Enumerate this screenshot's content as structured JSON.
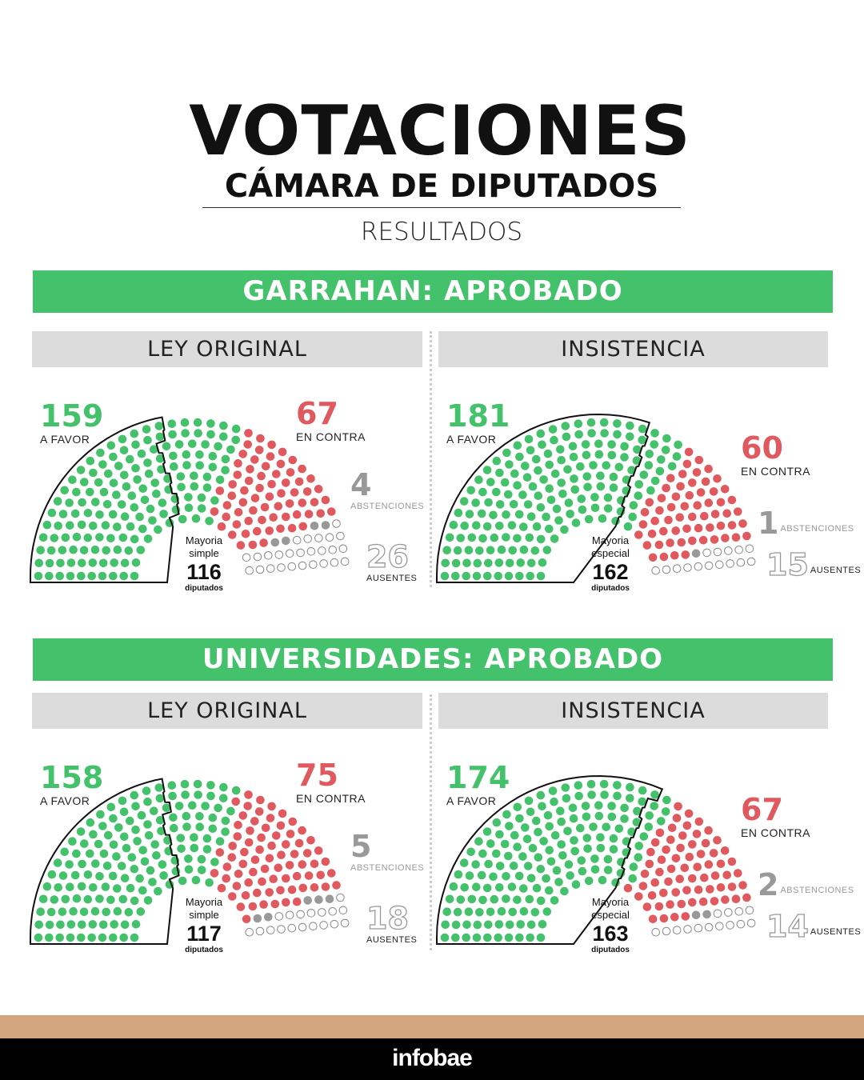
{
  "header": {
    "title": "VOTACIONES",
    "subtitle": "CÁMARA DE DIPUTADOS",
    "results_label": "RESULTADOS"
  },
  "colors": {
    "favor": "#43c16b",
    "contra": "#e0595e",
    "abstenciones": "#999999",
    "ausentes": "#ffffff",
    "banner": "#43c16b"
  },
  "sections": [
    {
      "name": "GARRAHAN:",
      "status": "APROBADO"
    },
    {
      "name": "UNIVERSIDADES:",
      "status": "APROBADO"
    }
  ],
  "chart_data": [
    {
      "type": "parliament",
      "section": "GARRAHAN",
      "title": "LEY ORIGINAL",
      "favor": 159,
      "contra": 67,
      "abstenciones": 4,
      "ausentes": 26,
      "favor_label": "A FAVOR",
      "contra_label": "EN CONTRA",
      "abst_label": "ABSTENCIONES",
      "aus_label": "AUSENTES",
      "majority_line1": "Mayoria",
      "majority_line2": "simple",
      "majority": 116,
      "majority_unit": "diputados"
    },
    {
      "type": "parliament",
      "section": "GARRAHAN",
      "title": "INSISTENCIA",
      "favor": 181,
      "contra": 60,
      "abstenciones": 1,
      "ausentes": 15,
      "favor_label": "A FAVOR",
      "contra_label": "EN CONTRA",
      "abst_label": "ABSTENCIONES",
      "aus_label": "AUSENTES",
      "majority_line1": "Mayoria",
      "majority_line2": "especial",
      "majority": 162,
      "majority_unit": "diputados"
    },
    {
      "type": "parliament",
      "section": "UNIVERSIDADES",
      "title": "LEY ORIGINAL",
      "favor": 158,
      "contra": 75,
      "abstenciones": 5,
      "ausentes": 18,
      "favor_label": "A FAVOR",
      "contra_label": "EN CONTRA",
      "abst_label": "ABSTENCIONES",
      "aus_label": "AUSENTES",
      "majority_line1": "Mayoria",
      "majority_line2": "simple",
      "majority": 117,
      "majority_unit": "diputados"
    },
    {
      "type": "parliament",
      "section": "UNIVERSIDADES",
      "title": "INSISTENCIA",
      "favor": 174,
      "contra": 67,
      "abstenciones": 2,
      "ausentes": 14,
      "favor_label": "A FAVOR",
      "contra_label": "EN CONTRA",
      "abst_label": "ABSTENCIONES",
      "aus_label": "AUSENTES",
      "majority_line1": "Mayoria",
      "majority_line2": "especial",
      "majority": 163,
      "majority_unit": "diputados"
    }
  ],
  "footer": {
    "brand": "infobae"
  }
}
